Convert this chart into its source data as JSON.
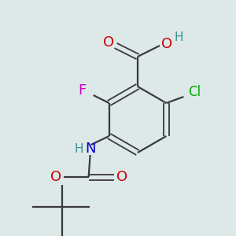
{
  "bg_color": "#dde8e8",
  "atom_colors": {
    "C": "#3a3a3a",
    "H": "#3a9090",
    "O": "#cc0000",
    "N": "#0000cc",
    "F": "#cc00cc",
    "Cl": "#00aa00"
  },
  "bond_color": "#3a3a3a",
  "figsize": [
    3.0,
    3.0
  ],
  "dpi": 100
}
